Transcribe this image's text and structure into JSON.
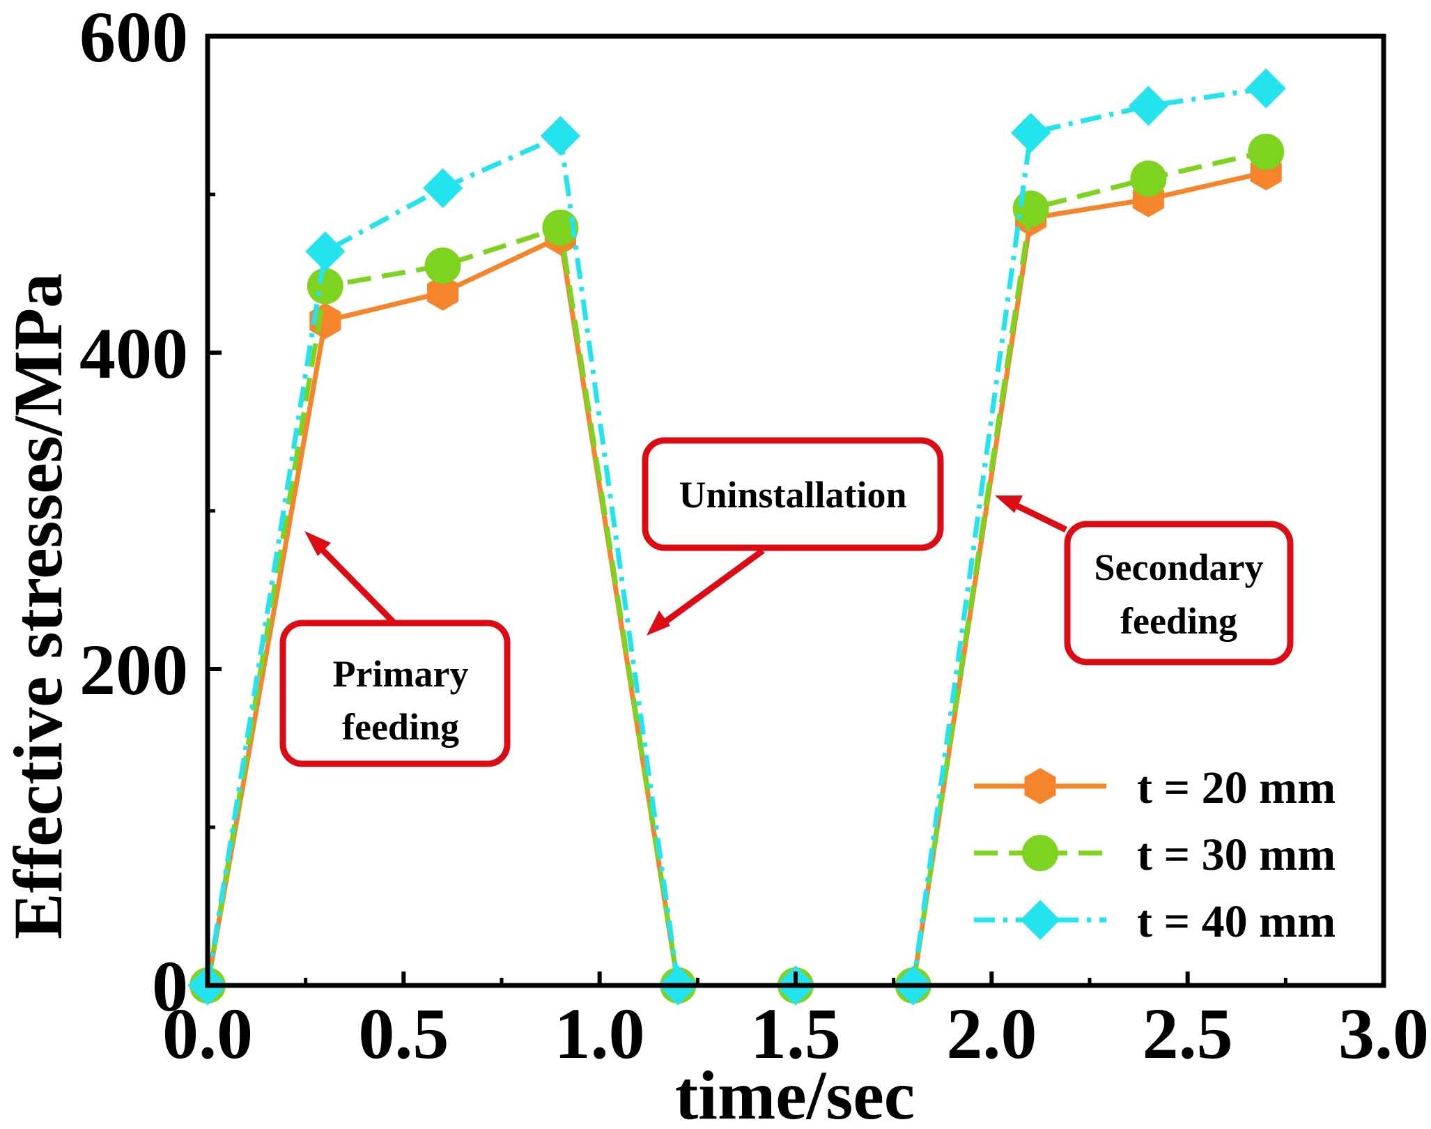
{
  "chart_data": {
    "type": "line",
    "xlabel": "time/sec",
    "ylabel": "Effective stresses/MPa",
    "xlim": [
      0.0,
      3.0
    ],
    "ylim": [
      0,
      600
    ],
    "x_ticks": [
      "0.0",
      "0.5",
      "1.0",
      "1.5",
      "2.0",
      "2.5",
      "3.0"
    ],
    "y_ticks": [
      "0",
      "200",
      "400",
      "600"
    ],
    "grid": false,
    "legend_position": "bottom-right",
    "series": [
      {
        "name": "t = 20 mm",
        "color": "#f5842a",
        "marker": "hexagon",
        "dash": "solid",
        "x": [
          0.0,
          0.3,
          0.6,
          0.9,
          1.2,
          1.5,
          1.8,
          2.1,
          2.4,
          2.7
        ],
        "y": [
          0,
          420,
          438,
          473,
          0,
          0,
          0,
          485,
          497,
          514
        ]
      },
      {
        "name": "t = 30 mm",
        "color": "#7ed321",
        "marker": "circle",
        "dash": "dash",
        "x": [
          0.0,
          0.3,
          0.6,
          0.9,
          1.2,
          1.5,
          1.8,
          2.1,
          2.4,
          2.7
        ],
        "y": [
          0,
          442,
          455,
          479,
          0,
          0,
          0,
          491,
          510,
          527
        ]
      },
      {
        "name": "t = 40 mm",
        "color": "#22e3ee",
        "marker": "diamond",
        "dash": "dashdot",
        "x": [
          0.0,
          0.3,
          0.6,
          0.9,
          1.2,
          1.5,
          1.8,
          2.1,
          2.4,
          2.7
        ],
        "y": [
          0,
          464,
          504,
          537,
          0,
          0,
          0,
          539,
          556,
          567
        ]
      }
    ],
    "annotations": [
      {
        "lines": [
          "Primary",
          "feeding"
        ]
      },
      {
        "lines": [
          "Uninstallation"
        ]
      },
      {
        "lines": [
          "Secondary",
          "feeding"
        ]
      }
    ]
  }
}
